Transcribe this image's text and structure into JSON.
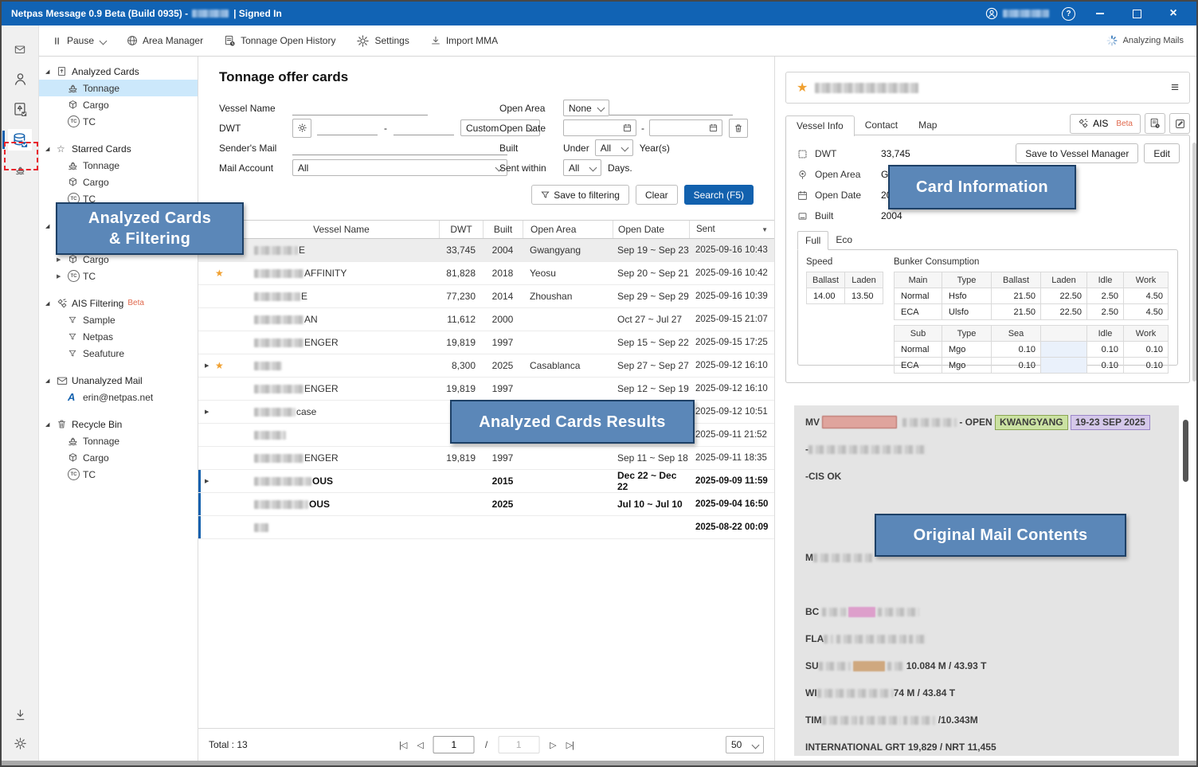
{
  "colors": {
    "accent": "#1261ae",
    "titlebar": "#1163b4",
    "annotation_fill": "#5b87b8",
    "annotation_border": "#1d4066",
    "red_dash": "#e8232a",
    "star": "#f0a030",
    "hl_red": "#dfa49d",
    "hl_green": "#cbe2a2",
    "hl_purple": "#d5c8ea",
    "hl_magenta": "#dd9fcb",
    "hl_tan": "#cfa87f",
    "selected_row": "#ededed",
    "selected_tree": "#cce8fb"
  },
  "titlebar": {
    "title": "Netpas Message 0.9 Beta (Build 0935) -",
    "signed_in": "| Signed In",
    "help_label": "?"
  },
  "toolbar": {
    "items": [
      {
        "label": "Pause",
        "icon": "pause-icon",
        "has_chevron": true
      },
      {
        "label": "Area Manager",
        "icon": "globe-icon"
      },
      {
        "label": "Tonnage Open History",
        "icon": "history-icon"
      },
      {
        "label": "Settings",
        "icon": "gear-icon"
      },
      {
        "label": "Import MMA",
        "icon": "import-icon"
      }
    ],
    "status": "Analyzing Mails"
  },
  "rail": {
    "icons": [
      "mail-icon",
      "person-icon",
      "card-check-icon",
      "analyzed-cards-db-icon",
      "ship-icon"
    ],
    "bottom_icons": [
      "download-icon",
      "gear-icon"
    ],
    "active_index": 3
  },
  "sidebar": {
    "groups": [
      {
        "label": "Analyzed Cards",
        "icon": "cards-icon",
        "expanded": true,
        "items": [
          {
            "label": "Tonnage",
            "icon": "ship-icon",
            "selected": true
          },
          {
            "label": "Cargo",
            "icon": "cargo-icon"
          },
          {
            "label": "TC",
            "icon": "tc-icon"
          }
        ]
      },
      {
        "label": "Starred Cards",
        "icon": "star-icon",
        "expanded": true,
        "items": [
          {
            "label": "Tonnage",
            "icon": "ship-icon"
          },
          {
            "label": "Cargo",
            "icon": "cargo-icon"
          },
          {
            "label": "TC",
            "icon": "tc-icon"
          }
        ]
      },
      {
        "label": "",
        "icon": "",
        "expanded": true,
        "covered_by_annotation": true,
        "items": [
          {
            "label": "",
            "icon": "",
            "hidden": true
          },
          {
            "label": "Cargo",
            "icon": "cargo-icon",
            "collapsed": true
          },
          {
            "label": "TC",
            "icon": "tc-icon",
            "collapsed": true
          }
        ]
      },
      {
        "label": "AIS Filtering",
        "badge": "Beta",
        "icon": "satellite-icon",
        "expanded": true,
        "items": [
          {
            "label": "Sample",
            "icon": "filter-icon"
          },
          {
            "label": "Netpas",
            "icon": "filter-icon"
          },
          {
            "label": "Seafuture",
            "icon": "filter-icon"
          }
        ]
      },
      {
        "label": "Unanalyzed Mail",
        "icon": "mail-icon",
        "expanded": true,
        "items": [
          {
            "label": "erin@netpas.net",
            "icon": "netpas-logo-icon"
          }
        ]
      },
      {
        "label": "Recycle Bin",
        "icon": "trash-icon",
        "expanded": true,
        "items": [
          {
            "label": "Tonnage",
            "icon": "ship-icon"
          },
          {
            "label": "Cargo",
            "icon": "cargo-icon"
          },
          {
            "label": "TC",
            "icon": "tc-icon"
          }
        ]
      }
    ]
  },
  "main": {
    "title": "Tonnage offer cards",
    "filters": {
      "vessel_name": {
        "label": "Vessel Name",
        "value": ""
      },
      "dwt": {
        "label": "DWT",
        "from": "",
        "to": "",
        "range_separator": "-",
        "preset": "Custom"
      },
      "senders_mail": {
        "label": "Sender's Mail",
        "value": ""
      },
      "mail_account": {
        "label": "Mail Account",
        "value": "All"
      },
      "open_area": {
        "label": "Open Area",
        "value": "None"
      },
      "open_date": {
        "label": "Open Date",
        "from": "",
        "to": "",
        "range_separator": "-"
      },
      "built": {
        "label": "Built",
        "prefix": "Under",
        "value": "All",
        "suffix": "Year(s)"
      },
      "sent_within": {
        "label": "Sent within",
        "value": "All",
        "suffix": "Days."
      }
    },
    "filter_actions": {
      "save": "Save to filtering",
      "clear": "Clear",
      "search": "Search (F5)"
    },
    "table": {
      "columns": [
        "",
        "Vessel Name",
        "DWT",
        "Built",
        "Open Area",
        "Open Date",
        "Sent"
      ],
      "rows": [
        {
          "selected": true,
          "name_redacted_w": 55,
          "name_visible": "E",
          "dwt": "33,745",
          "built": "2004",
          "open_area": "Gwangyang",
          "open_date": "Sep 19 ~ Sep 23",
          "sent": "2025-09-16 10:43"
        },
        {
          "starred": true,
          "name_redacted_w": 62,
          "name_visible": "AFFINITY",
          "dwt": "81,828",
          "built": "2018",
          "open_area": "Yeosu",
          "open_date": "Sep 20 ~ Sep 21",
          "sent": "2025-09-16 10:42"
        },
        {
          "name_redacted_w": 58,
          "name_visible": "E",
          "dwt": "77,230",
          "built": "2014",
          "open_area": "Zhoushan",
          "open_date": "Sep 29 ~ Sep 29",
          "sent": "2025-09-16 10:39"
        },
        {
          "name_redacted_w": 62,
          "name_visible": "AN",
          "dwt": "11,612",
          "built": "2000",
          "open_area": "",
          "open_date": "Oct 27 ~ Jul 27",
          "sent": "2025-09-15 21:07"
        },
        {
          "name_redacted_w": 62,
          "name_visible": "ENGER",
          "dwt": "19,819",
          "built": "1997",
          "open_area": "",
          "open_date": "Sep 15 ~ Sep 22",
          "sent": "2025-09-15 17:25"
        },
        {
          "expandable": true,
          "starred": true,
          "name_redacted_w": 35,
          "name_visible": "",
          "dwt": "8,300",
          "built": "2025",
          "open_area": "Casablanca",
          "open_date": "Sep 27 ~ Sep 27",
          "sent": "2025-09-12 16:10"
        },
        {
          "name_redacted_w": 62,
          "name_visible": "ENGER",
          "dwt": "19,819",
          "built": "1997",
          "open_area": "",
          "open_date": "Sep 12 ~ Sep 19",
          "sent": "2025-09-12 16:10"
        },
        {
          "expandable": true,
          "name_redacted_w": 52,
          "name_visible": " case",
          "dwt": "",
          "built": "",
          "open_area": "",
          "open_date": "",
          "sent": "2025-09-12 10:51"
        },
        {
          "name_redacted_w": 40,
          "name_visible": "",
          "dwt": "",
          "built": "",
          "open_area": "",
          "open_date": "",
          "sent": "2025-09-11 21:52"
        },
        {
          "name_redacted_w": 62,
          "name_visible": "ENGER",
          "dwt": "19,819",
          "built": "1997",
          "open_area": "",
          "open_date": "Sep 11 ~ Sep 18",
          "sent": "2025-09-11 18:35"
        },
        {
          "expandable": true,
          "unread": true,
          "name_redacted_w": 72,
          "name_visible": "OUS",
          "dwt": "",
          "built": "2015",
          "open_area": "",
          "open_date": "Dec 22 ~ Dec 22",
          "sent": "2025-09-09 11:59"
        },
        {
          "unread": true,
          "name_redacted_w": 68,
          "name_visible": "OUS",
          "dwt": "",
          "built": "2025",
          "open_area": "",
          "open_date": "Jul 10 ~ Jul 10",
          "sent": "2025-09-04 16:50"
        },
        {
          "unread": true,
          "name_redacted_w": 18,
          "name_visible": "",
          "dwt": "",
          "built": "",
          "open_area": "",
          "open_date": "",
          "sent": "2025-08-22 00:09"
        }
      ]
    },
    "footer": {
      "total": "Total : 13",
      "page": "1",
      "page_separator": "/",
      "page_total": "1",
      "page_size": "50"
    }
  },
  "right_panel": {
    "header": {
      "starred": true,
      "name_redacted_w": 130
    },
    "tabs": [
      {
        "label": "Vessel Info",
        "active": true
      },
      {
        "label": "Contact"
      },
      {
        "label": "Map"
      }
    ],
    "ais_button": {
      "label": "AIS",
      "badge": "Beta"
    },
    "fields": [
      {
        "icon": "dwt-icon",
        "label": "DWT",
        "value": "33,745"
      },
      {
        "icon": "location-icon",
        "label": "Open Area",
        "value": "Gw"
      },
      {
        "icon": "calendar-icon",
        "label": "Open Date",
        "value": "20"
      },
      {
        "icon": "built-icon",
        "label": "Built",
        "value": "2004"
      }
    ],
    "buttons": {
      "save": "Save to Vessel Manager",
      "edit": "Edit"
    },
    "spec_tabs": [
      {
        "label": "Full",
        "active": true
      },
      {
        "label": "Eco"
      }
    ],
    "consumption": {
      "speed_label": "Speed",
      "bunker_label": "Bunker Consumption",
      "speed": {
        "headers": [
          "Ballast",
          "Laden"
        ],
        "row": [
          "14.00",
          "13.50"
        ]
      },
      "main": {
        "headers": [
          "Main",
          "Type",
          "Ballast",
          "Laden",
          "Idle",
          "Work"
        ],
        "rows": [
          [
            "Normal",
            "Hsfo",
            "21.50",
            "22.50",
            "2.50",
            "4.50"
          ],
          [
            "ECA",
            "Ulsfo",
            "21.50",
            "22.50",
            "2.50",
            "4.50"
          ]
        ]
      },
      "sub": {
        "headers": [
          "Sub",
          "Type",
          "Sea",
          "",
          "Idle",
          "Work"
        ],
        "rows": [
          [
            "Normal",
            "Mgo",
            "0.10",
            "",
            "0.10",
            "0.10"
          ],
          [
            "ECA",
            "Mgo",
            "0.10",
            "",
            "0.10",
            "0.10"
          ]
        ]
      }
    },
    "mail_lines": [
      [
        {
          "t": "MV "
        },
        {
          "blur": 92,
          "hl": "red"
        },
        {
          "t": "  "
        },
        {
          "blur": 68
        },
        {
          "t": " - OPEN "
        },
        {
          "t": "KWANGYANG",
          "hl": "green"
        },
        {
          "t": " "
        },
        {
          "t": "19-23 SEP 2025",
          "hl": "purple"
        }
      ],
      [
        {
          "t": "-"
        },
        {
          "blur": 148
        }
      ],
      [
        {
          "t": "-CIS OK"
        }
      ],
      [],
      [],
      [
        {
          "t": "M"
        },
        {
          "blur": 74
        }
      ],
      [],
      [
        {
          "t": "BC "
        },
        {
          "blur": 30
        },
        {
          "t": " "
        },
        {
          "blur": 34,
          "hl": "magenta"
        },
        {
          "t": " "
        },
        {
          "blur": 52
        }
      ],
      [
        {
          "t": "FLA"
        },
        {
          "blur": 12
        },
        {
          "t": " "
        },
        {
          "blur": 88
        },
        {
          "t": " "
        },
        {
          "blur": 22
        }
      ],
      [
        {
          "t": "SU"
        },
        {
          "blur": 40
        },
        {
          "t": " "
        },
        {
          "blur": 40,
          "hl": "tan"
        },
        {
          "t": " "
        },
        {
          "blur": 20
        },
        {
          "t": " 10.084 M / 43.93 T"
        }
      ],
      [
        {
          "t": "WI"
        },
        {
          "blur": 96
        },
        {
          "t": "74 M / 43.84 T"
        }
      ],
      [
        {
          "t": "TIM"
        },
        {
          "blur": 44
        },
        {
          "t": " "
        },
        {
          "blur": 52
        },
        {
          "t": " "
        },
        {
          "blur": 40
        },
        {
          "t": " /10.343M"
        }
      ],
      [
        {
          "t": "INTERNATIONAL GRT 19,829 / NRT 11,455"
        }
      ]
    ]
  },
  "annotations": {
    "filtering": {
      "lines": [
        "Analyzed Cards",
        "& Filtering"
      ]
    },
    "card_information": {
      "lines": [
        "Card Information"
      ]
    },
    "results": {
      "lines": [
        "Analyzed Cards Results"
      ]
    },
    "mail": {
      "lines": [
        "Original Mail Contents"
      ]
    }
  }
}
